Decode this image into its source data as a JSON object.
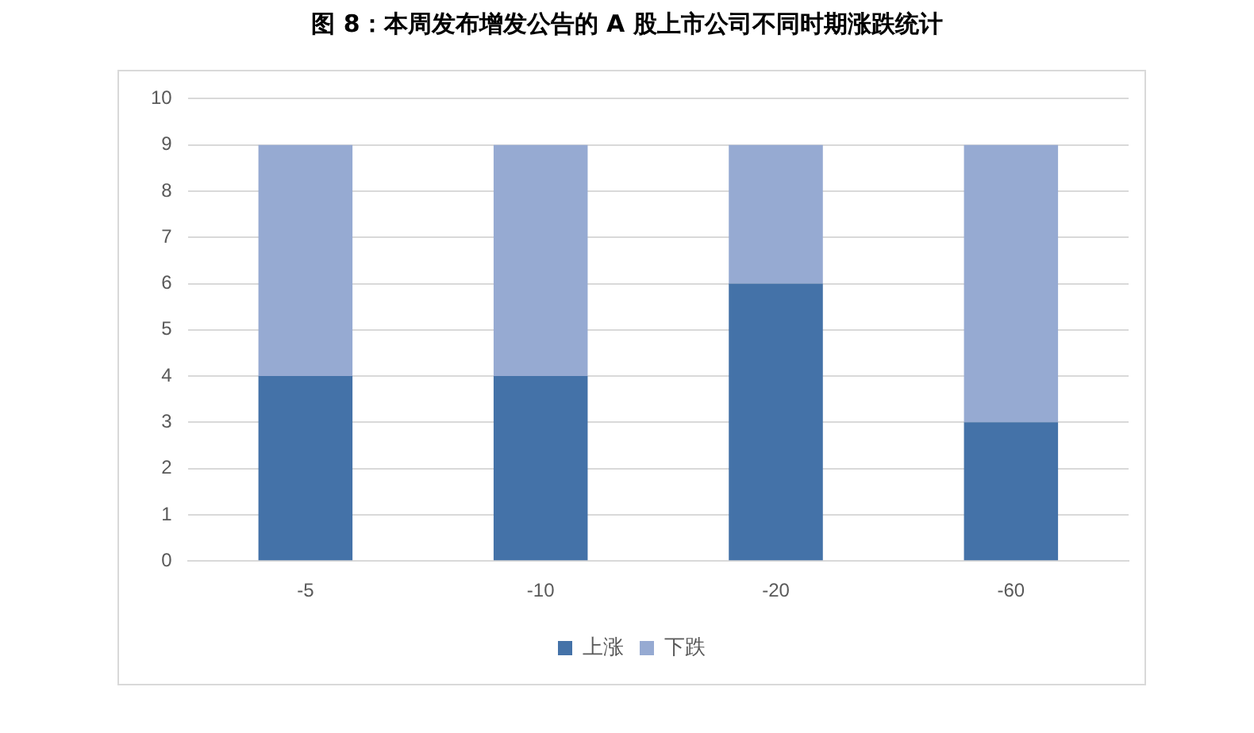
{
  "chart_data": {
    "type": "bar",
    "title": "图 8：本周发布增发公告的 A 股上市公司不同时期涨跌统计",
    "categories": [
      "-5",
      "-10",
      "-20",
      "-60"
    ],
    "series": [
      {
        "name": "上涨",
        "color": "#4472a8",
        "values": [
          4,
          4,
          6,
          3
        ]
      },
      {
        "name": "下跌",
        "color": "#96aad2",
        "values": [
          5,
          5,
          3,
          6
        ]
      }
    ],
    "stacked": true,
    "ylim": [
      0,
      10
    ],
    "yticks": [
      0,
      1,
      2,
      3,
      4,
      5,
      6,
      7,
      8,
      9,
      10
    ],
    "grid": "y",
    "legend": "bottom"
  }
}
